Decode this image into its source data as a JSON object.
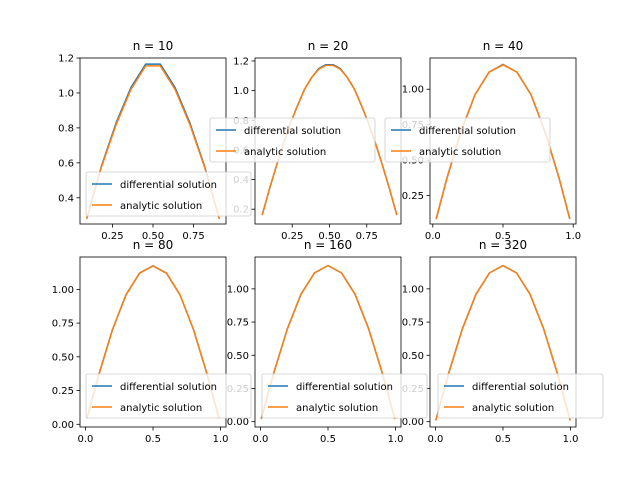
{
  "figure": {
    "legend_labels": [
      "differential solution",
      "analytic solution"
    ],
    "colors": {
      "series_1": "#1f77b4",
      "series_2": "#ff7f0e"
    }
  },
  "chart_data": [
    {
      "type": "line",
      "title": "n = 10",
      "xlim": [
        0.05,
        0.95
      ],
      "ylim": [
        0.25,
        1.2
      ],
      "xticks": [
        "0.25",
        "0.50",
        "0.75"
      ],
      "yticks": [
        "0.4",
        "0.6",
        "0.8",
        "1.0",
        "1.2"
      ],
      "legend": "lower-left",
      "grid": false,
      "series": [
        {
          "name": "differential solution",
          "x": [
            0.091,
            0.182,
            0.273,
            0.364,
            0.455,
            0.545,
            0.636,
            0.727,
            0.818,
            0.909
          ],
          "y": [
            0.28,
            0.58,
            0.83,
            1.03,
            1.165,
            1.165,
            1.03,
            0.83,
            0.58,
            0.28
          ]
        },
        {
          "name": "analytic solution",
          "x": [
            0.091,
            0.182,
            0.273,
            0.364,
            0.455,
            0.545,
            0.636,
            0.727,
            0.818,
            0.909
          ],
          "y": [
            0.28,
            0.575,
            0.82,
            1.02,
            1.155,
            1.155,
            1.02,
            0.82,
            0.575,
            0.28
          ]
        }
      ]
    },
    {
      "type": "line",
      "title": "n = 20",
      "xlim": [
        0.0,
        0.98
      ],
      "ylim": [
        0.1,
        1.22
      ],
      "xticks": [
        "0.25",
        "0.50",
        "0.75"
      ],
      "yticks": [
        "0.2",
        "0.4",
        "0.6",
        "0.8",
        "1.0",
        "1.2"
      ],
      "legend": "center",
      "grid": false,
      "series": [
        {
          "name": "differential solution",
          "x": [
            0.048,
            0.095,
            0.143,
            0.19,
            0.238,
            0.286,
            0.333,
            0.381,
            0.429,
            0.476,
            0.524,
            0.571,
            0.619,
            0.667,
            0.714,
            0.762,
            0.81,
            0.857,
            0.905,
            0.952
          ],
          "y": [
            0.16,
            0.33,
            0.49,
            0.64,
            0.78,
            0.9,
            1.01,
            1.09,
            1.15,
            1.175,
            1.175,
            1.15,
            1.09,
            1.01,
            0.9,
            0.78,
            0.64,
            0.49,
            0.33,
            0.16
          ]
        },
        {
          "name": "analytic solution",
          "x": [
            0.048,
            0.095,
            0.143,
            0.19,
            0.238,
            0.286,
            0.333,
            0.381,
            0.429,
            0.476,
            0.524,
            0.571,
            0.619,
            0.667,
            0.714,
            0.762,
            0.81,
            0.857,
            0.905,
            0.952
          ],
          "y": [
            0.16,
            0.33,
            0.49,
            0.64,
            0.78,
            0.9,
            1.01,
            1.09,
            1.145,
            1.17,
            1.17,
            1.145,
            1.09,
            1.01,
            0.9,
            0.78,
            0.64,
            0.49,
            0.33,
            0.16
          ]
        }
      ]
    },
    {
      "type": "line",
      "title": "n = 40",
      "xlim": [
        -0.02,
        1.02
      ],
      "ylim": [
        0.05,
        1.22
      ],
      "xticks": [
        "0.0",
        "0.5",
        "1.0"
      ],
      "yticks": [
        "0.25",
        "0.50",
        "0.75",
        "1.00"
      ],
      "legend": "center",
      "grid": false,
      "series": [
        {
          "name": "differential solution",
          "x": [
            0.024,
            0.1,
            0.2,
            0.3,
            0.4,
            0.5,
            0.6,
            0.7,
            0.8,
            0.9,
            0.976
          ],
          "y": [
            0.085,
            0.37,
            0.7,
            0.96,
            1.12,
            1.175,
            1.12,
            0.96,
            0.7,
            0.37,
            0.085
          ]
        },
        {
          "name": "analytic solution",
          "x": [
            0.024,
            0.1,
            0.2,
            0.3,
            0.4,
            0.5,
            0.6,
            0.7,
            0.8,
            0.9,
            0.976
          ],
          "y": [
            0.085,
            0.37,
            0.7,
            0.96,
            1.12,
            1.172,
            1.12,
            0.96,
            0.7,
            0.37,
            0.085
          ]
        }
      ]
    },
    {
      "type": "line",
      "title": "n = 80",
      "xlim": [
        -0.04,
        1.04
      ],
      "ylim": [
        -0.02,
        1.24
      ],
      "xticks": [
        "0.0",
        "0.5",
        "1.0"
      ],
      "yticks": [
        "0.00",
        "0.25",
        "0.50",
        "0.75",
        "1.00"
      ],
      "legend": "lower-right",
      "grid": false,
      "series": [
        {
          "name": "differential solution",
          "x": [
            0.012,
            0.1,
            0.2,
            0.3,
            0.4,
            0.5,
            0.6,
            0.7,
            0.8,
            0.9,
            0.988
          ],
          "y": [
            0.045,
            0.37,
            0.7,
            0.96,
            1.12,
            1.175,
            1.12,
            0.96,
            0.7,
            0.37,
            0.045
          ]
        },
        {
          "name": "analytic solution",
          "x": [
            0.012,
            0.1,
            0.2,
            0.3,
            0.4,
            0.5,
            0.6,
            0.7,
            0.8,
            0.9,
            0.988
          ],
          "y": [
            0.045,
            0.37,
            0.7,
            0.96,
            1.12,
            1.174,
            1.12,
            0.96,
            0.7,
            0.37,
            0.045
          ]
        }
      ]
    },
    {
      "type": "line",
      "title": "n = 160",
      "xlim": [
        -0.04,
        1.04
      ],
      "ylim": [
        -0.04,
        1.24
      ],
      "xticks": [
        "0.0",
        "0.5",
        "1.0"
      ],
      "yticks": [
        "0.00",
        "0.25",
        "0.50",
        "0.75",
        "1.00"
      ],
      "legend": "lower-right",
      "grid": false,
      "series": [
        {
          "name": "differential solution",
          "x": [
            0.006,
            0.1,
            0.2,
            0.3,
            0.4,
            0.5,
            0.6,
            0.7,
            0.8,
            0.9,
            0.994
          ],
          "y": [
            0.02,
            0.37,
            0.7,
            0.96,
            1.12,
            1.175,
            1.12,
            0.96,
            0.7,
            0.37,
            0.02
          ]
        },
        {
          "name": "analytic solution",
          "x": [
            0.006,
            0.1,
            0.2,
            0.3,
            0.4,
            0.5,
            0.6,
            0.7,
            0.8,
            0.9,
            0.994
          ],
          "y": [
            0.02,
            0.37,
            0.7,
            0.96,
            1.12,
            1.175,
            1.12,
            0.96,
            0.7,
            0.37,
            0.02
          ]
        }
      ]
    },
    {
      "type": "line",
      "title": "n = 320",
      "xlim": [
        -0.04,
        1.04
      ],
      "ylim": [
        -0.04,
        1.24
      ],
      "xticks": [
        "0.0",
        "0.5",
        "1.0"
      ],
      "yticks": [
        "0.00",
        "0.25",
        "0.50",
        "0.75",
        "1.00"
      ],
      "legend": "lower-right",
      "grid": false,
      "series": [
        {
          "name": "differential solution",
          "x": [
            0.003,
            0.1,
            0.2,
            0.3,
            0.4,
            0.5,
            0.6,
            0.7,
            0.8,
            0.9,
            0.997
          ],
          "y": [
            0.01,
            0.37,
            0.7,
            0.96,
            1.12,
            1.175,
            1.12,
            0.96,
            0.7,
            0.37,
            0.01
          ]
        },
        {
          "name": "analytic solution",
          "x": [
            0.003,
            0.1,
            0.2,
            0.3,
            0.4,
            0.5,
            0.6,
            0.7,
            0.8,
            0.9,
            0.997
          ],
          "y": [
            0.01,
            0.37,
            0.7,
            0.96,
            1.12,
            1.175,
            1.12,
            0.96,
            0.7,
            0.37,
            0.01
          ]
        }
      ]
    }
  ]
}
